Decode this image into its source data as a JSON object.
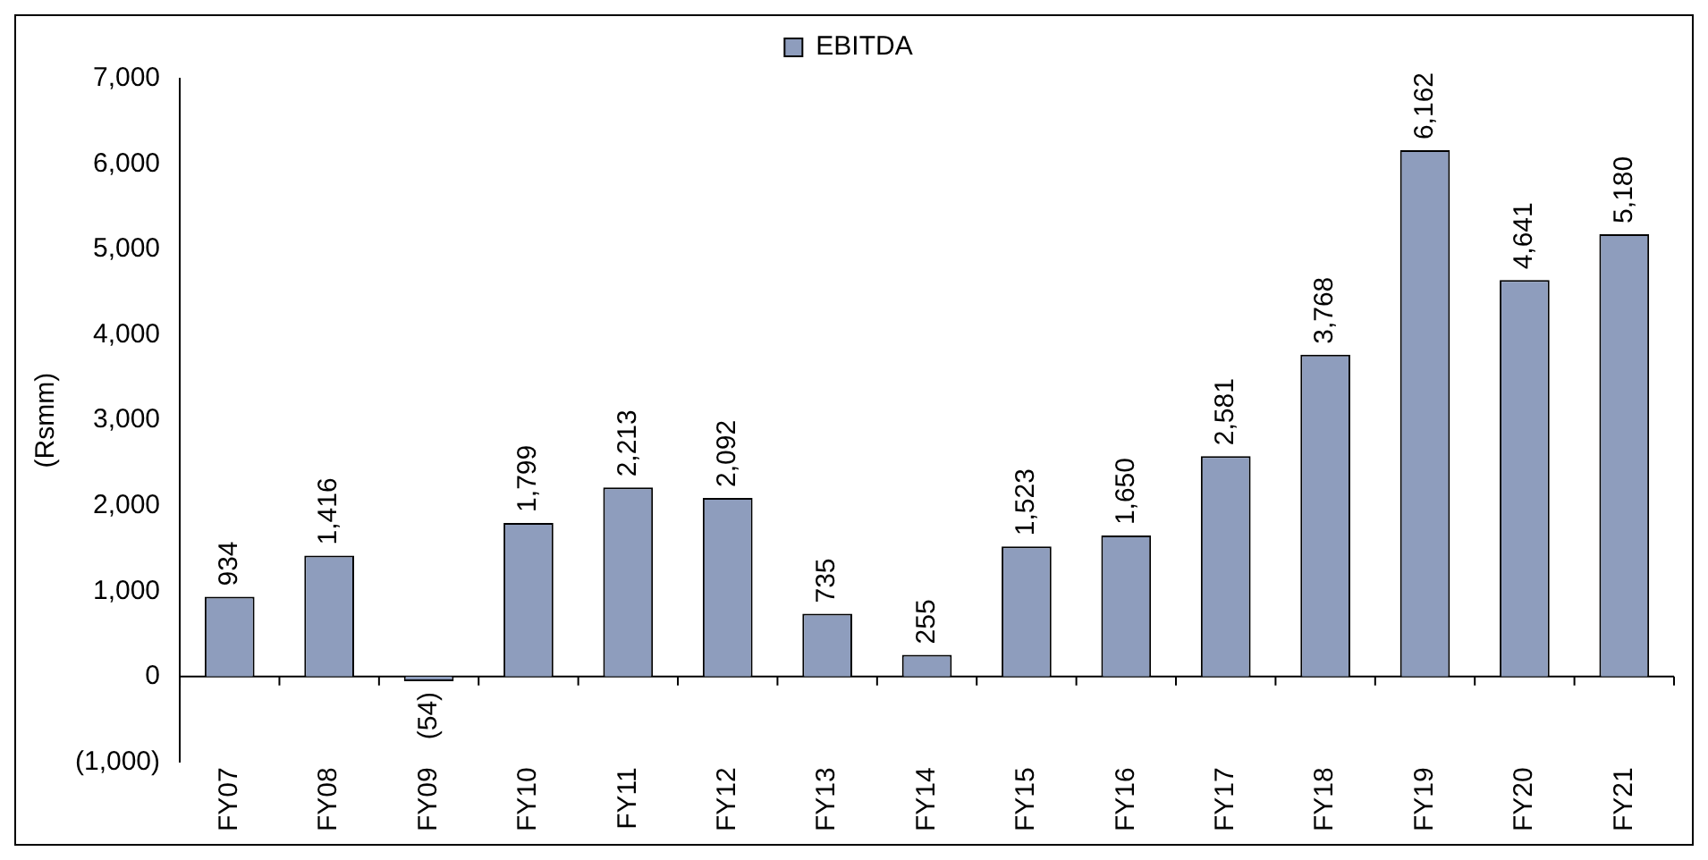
{
  "chart_data": {
    "type": "bar",
    "ylabel": "(Rsmm)",
    "categories": [
      "FY07",
      "FY08",
      "FY09",
      "FY10",
      "FY11",
      "FY12",
      "FY13",
      "FY14",
      "FY15",
      "FY16",
      "FY17",
      "FY18",
      "FY19",
      "FY20",
      "FY21"
    ],
    "series": [
      {
        "name": "EBITDA",
        "color": "#8e9dbd",
        "values": [
          934,
          1416,
          -54,
          1799,
          2213,
          2092,
          735,
          255,
          1523,
          1650,
          2581,
          3768,
          6162,
          4641,
          5180
        ],
        "value_labels": [
          "934",
          "1,416",
          "(54)",
          "1,799",
          "2,213",
          "2,092",
          "735",
          "255",
          "1,523",
          "1,650",
          "2,581",
          "3,768",
          "6,162",
          "4,641",
          "5,180"
        ]
      }
    ],
    "ylim": [
      -1000,
      7000
    ],
    "yticks": [
      {
        "value": -1000,
        "label": "(1,000)"
      },
      0,
      {
        "value": 1000,
        "label": "1,000"
      },
      {
        "value": 2000,
        "label": "2,000"
      },
      {
        "value": 3000,
        "label": "3,000"
      },
      {
        "value": 4000,
        "label": "4,000"
      },
      {
        "value": 5000,
        "label": "5,000"
      },
      {
        "value": 6000,
        "label": "6,000"
      },
      {
        "value": 7000,
        "label": "7,000"
      }
    ],
    "legend": "top"
  }
}
